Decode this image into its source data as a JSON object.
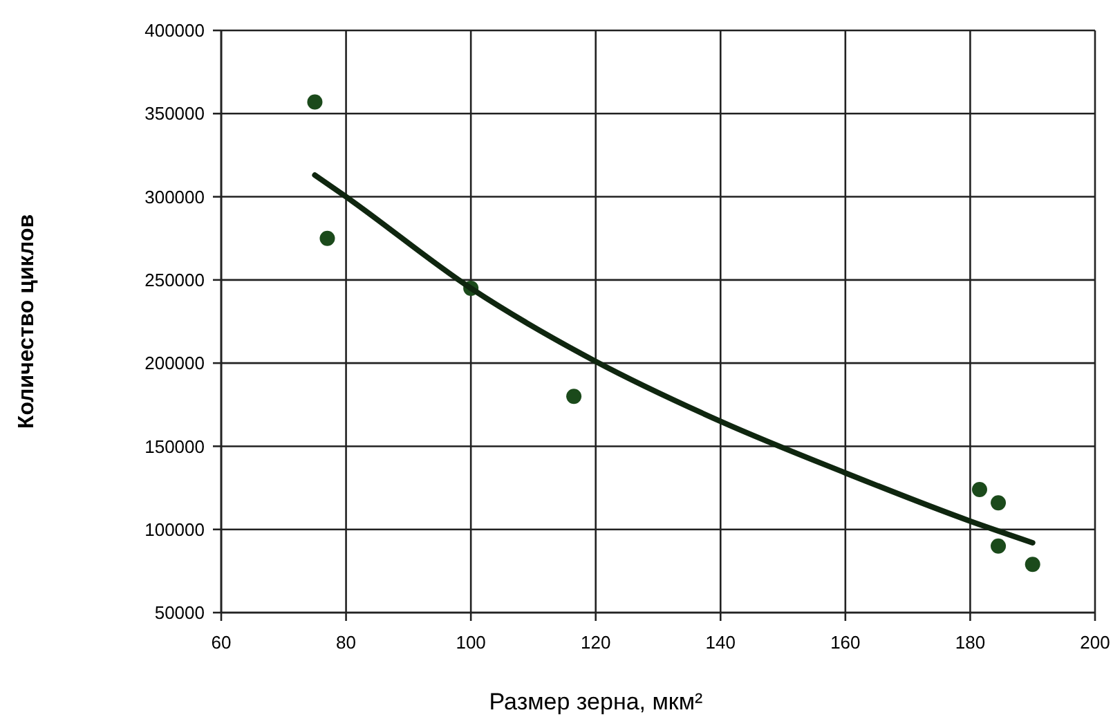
{
  "chart_data": {
    "type": "scatter",
    "xlabel": "Размер зерна, мкм²",
    "ylabel": "Количество циклов",
    "xlim": [
      60,
      200
    ],
    "xticks": [
      60,
      80,
      100,
      120,
      140,
      160,
      180,
      200
    ],
    "ylim": [
      50000,
      400000
    ],
    "yticks": [
      50000,
      100000,
      150000,
      200000,
      250000,
      300000,
      350000,
      400000
    ],
    "grid": true,
    "series": [
      {
        "color": "#1b4a1b",
        "marker": "circle",
        "x": [
          75,
          77,
          100,
          116.5,
          181.5,
          184.5,
          184.5,
          190
        ],
        "values": [
          357000,
          275000,
          245000,
          180000,
          124000,
          116000,
          90000,
          79000
        ]
      },
      {
        "type": "line",
        "color": "#0f260f",
        "line_style": "solid",
        "x": [
          75,
          80,
          100,
          120,
          140,
          160,
          180,
          190
        ],
        "values": [
          313000,
          300000,
          245000,
          201000,
          165000,
          134000,
          105000,
          92000
        ]
      }
    ]
  }
}
